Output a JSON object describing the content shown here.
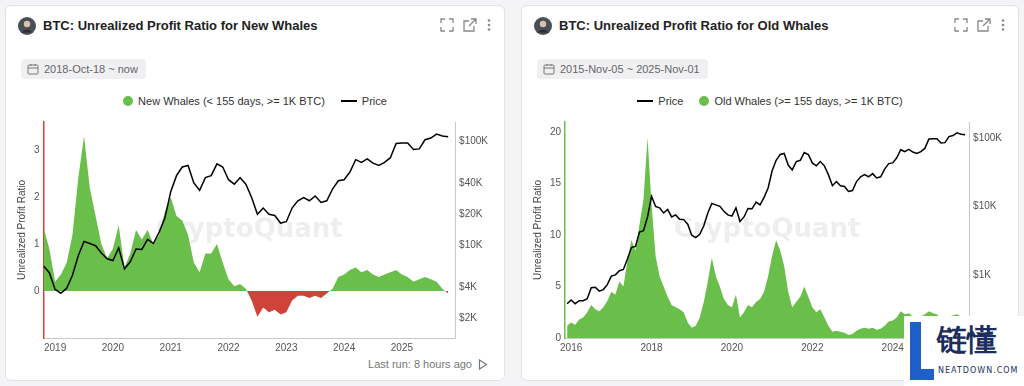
{
  "chart_data": [
    {
      "type": "area",
      "title": "BTC: Unrealized Profit Ratio for New Whales",
      "subtitle": "2018-Oct-18 ~ now",
      "watermark": "CryptoQuant",
      "footer": "Last run: 8 hours ago",
      "y_label": "Unrealized Profit Ratio",
      "legend": "top",
      "grid": false,
      "log": "y2",
      "x": [
        2018.8,
        2018.9,
        2019.0,
        2019.1,
        2019.2,
        2019.3,
        2019.4,
        2019.5,
        2019.6,
        2019.7,
        2019.8,
        2019.9,
        2020.0,
        2020.1,
        2020.2,
        2020.3,
        2020.4,
        2020.5,
        2020.6,
        2020.7,
        2020.8,
        2020.9,
        2021.0,
        2021.1,
        2021.2,
        2021.3,
        2021.4,
        2021.5,
        2021.6,
        2021.7,
        2021.8,
        2021.9,
        2022.0,
        2022.1,
        2022.2,
        2022.3,
        2022.4,
        2022.5,
        2022.6,
        2022.7,
        2022.8,
        2022.9,
        2023.0,
        2023.1,
        2023.2,
        2023.3,
        2023.4,
        2023.5,
        2023.6,
        2023.7,
        2023.8,
        2023.9,
        2024.0,
        2024.1,
        2024.2,
        2024.3,
        2024.4,
        2024.5,
        2024.6,
        2024.7,
        2024.8,
        2024.9,
        2025.0,
        2025.1,
        2025.2,
        2025.3,
        2025.4,
        2025.5,
        2025.6,
        2025.7,
        2025.8
      ],
      "xlim": [
        2018.8,
        2025.92
      ],
      "xticks": [
        2019,
        2020,
        2021,
        2022,
        2023,
        2024,
        2025
      ],
      "ylim": [
        -1,
        3.6
      ],
      "yticks": [
        0,
        1,
        2,
        3
      ],
      "y2lim": [
        1300,
        154000
      ],
      "y2ticks": [
        {
          "value": 2000,
          "label": "$2K"
        },
        {
          "value": 4000,
          "label": "$4K"
        },
        {
          "value": 10000,
          "label": "$10K"
        },
        {
          "value": 20000,
          "label": "$20K"
        },
        {
          "value": 40000,
          "label": "$40K"
        },
        {
          "value": 100000,
          "label": "$100K"
        }
      ],
      "series": [
        {
          "name": "New Whales (< 155 days, >= 1K BTC)",
          "type": "area",
          "marker": "circle",
          "values": [
            1.35,
            0.9,
            0.2,
            0.35,
            0.6,
            1.2,
            2.4,
            3.3,
            2.2,
            1.6,
            1.0,
            0.7,
            0.9,
            1.4,
            0.5,
            0.8,
            1.3,
            1.1,
            1.3,
            1.0,
            1.2,
            1.7,
            2.0,
            1.6,
            1.5,
            1.2,
            0.6,
            0.4,
            0.8,
            0.8,
            1.0,
            0.6,
            0.25,
            0.1,
            0.15,
            0.05,
            -0.2,
            -0.55,
            -0.35,
            -0.45,
            -0.4,
            -0.5,
            -0.45,
            -0.2,
            -0.1,
            -0.1,
            -0.15,
            -0.1,
            -0.15,
            -0.05,
            0.05,
            0.3,
            0.35,
            0.45,
            0.5,
            0.4,
            0.45,
            0.35,
            0.3,
            0.35,
            0.4,
            0.45,
            0.35,
            0.3,
            0.2,
            0.25,
            0.3,
            0.25,
            0.2,
            0.05,
            -0.05
          ],
          "colors": [
            "#6abf4b",
            "#6abf4b",
            "#6abf4b",
            "#6abf4b",
            "#6abf4b",
            "#6abf4b",
            "#6abf4b",
            "#6abf4b",
            "#6abf4b",
            "#6abf4b",
            "#6abf4b",
            "#6abf4b",
            "#6abf4b",
            "#6abf4b",
            "#6abf4b",
            "#6abf4b",
            "#6abf4b",
            "#6abf4b",
            "#6abf4b",
            "#6abf4b",
            "#6abf4b",
            "#6abf4b",
            "#6abf4b",
            "#6abf4b",
            "#6abf4b",
            "#6abf4b",
            "#6abf4b",
            "#6abf4b",
            "#6abf4b",
            "#6abf4b",
            "#6abf4b",
            "#6abf4b",
            "#6abf4b",
            "#6abf4b",
            "#6abf4b",
            "#6abf4b",
            "#cf4338",
            "#cf4338",
            "#cf4338",
            "#cf4338",
            "#cf4338",
            "#cf4338",
            "#cf4338",
            "#cf4338",
            "#cf4338",
            "#cf4338",
            "#cf4338",
            "#cf4338",
            "#cf4338",
            "#cf4338",
            "#6abf4b",
            "#6abf4b",
            "#6abf4b",
            "#6abf4b",
            "#6abf4b",
            "#6abf4b",
            "#6abf4b",
            "#6abf4b",
            "#6abf4b",
            "#6abf4b",
            "#6abf4b",
            "#6abf4b",
            "#6abf4b",
            "#6abf4b",
            "#6abf4b",
            "#6abf4b",
            "#6abf4b",
            "#6abf4b",
            "#6abf4b",
            "#6abf4b",
            "#cf4338"
          ]
        },
        {
          "name": "Price",
          "type": "line",
          "axis": "y2",
          "color": "#000000",
          "line_style": "solid",
          "values": [
            6400,
            5500,
            3800,
            3500,
            3900,
            5200,
            8000,
            11000,
            10500,
            10000,
            8500,
            7500,
            7200,
            9500,
            6000,
            7000,
            9300,
            9200,
            11500,
            10500,
            13500,
            18500,
            33000,
            47000,
            57000,
            59000,
            40000,
            34000,
            45000,
            47000,
            61000,
            57000,
            43000,
            39000,
            45000,
            39000,
            29000,
            20000,
            23000,
            20000,
            19500,
            16500,
            17000,
            23000,
            27000,
            29000,
            27000,
            30000,
            26000,
            27000,
            35000,
            42000,
            43000,
            51000,
            67000,
            63000,
            68000,
            62000,
            59000,
            63000,
            70000,
            96000,
            97000,
            97000,
            84000,
            85000,
            104000,
            108000,
            118000,
            113000,
            111000
          ]
        }
      ]
    },
    {
      "type": "area",
      "title": "BTC: Unrealized Profit Ratio for Old Whales",
      "subtitle": "2015-Nov-05 ~ 2025-Nov-01",
      "watermark": "CryptoQuant",
      "y_label": "Unrealized Profit Ratio",
      "legend": "top",
      "grid": false,
      "log": "y2",
      "x": [
        2015.9,
        2016.0,
        2016.1,
        2016.2,
        2016.3,
        2016.4,
        2016.5,
        2016.6,
        2016.7,
        2016.8,
        2016.9,
        2017.0,
        2017.1,
        2017.2,
        2017.3,
        2017.4,
        2017.5,
        2017.6,
        2017.7,
        2017.8,
        2017.9,
        2018.0,
        2018.1,
        2018.2,
        2018.3,
        2018.4,
        2018.5,
        2018.6,
        2018.7,
        2018.8,
        2018.9,
        2019.0,
        2019.1,
        2019.2,
        2019.3,
        2019.4,
        2019.5,
        2019.6,
        2019.7,
        2019.8,
        2019.9,
        2020.0,
        2020.1,
        2020.2,
        2020.3,
        2020.4,
        2020.5,
        2020.6,
        2020.7,
        2020.8,
        2020.9,
        2021.0,
        2021.1,
        2021.2,
        2021.3,
        2021.4,
        2021.5,
        2021.6,
        2021.7,
        2021.8,
        2021.9,
        2022.0,
        2022.1,
        2022.2,
        2022.3,
        2022.4,
        2022.5,
        2022.6,
        2022.7,
        2022.8,
        2022.9,
        2023.0,
        2023.1,
        2023.2,
        2023.3,
        2023.4,
        2023.5,
        2023.6,
        2023.7,
        2023.8,
        2023.9,
        2024.0,
        2024.1,
        2024.2,
        2024.3,
        2024.4,
        2024.5,
        2024.6,
        2024.7,
        2024.8,
        2024.9,
        2025.0,
        2025.1,
        2025.2,
        2025.3,
        2025.4,
        2025.5,
        2025.6,
        2025.7,
        2025.8
      ],
      "xlim": [
        2015.85,
        2025.9
      ],
      "xticks": [
        2016,
        2018,
        2020,
        2022,
        2024
      ],
      "ylim": [
        0,
        21
      ],
      "yticks": [
        0,
        5,
        10,
        15,
        20
      ],
      "y2lim": [
        120,
        170000
      ],
      "y2ticks": [
        {
          "value": 1000,
          "label": "$1K"
        },
        {
          "value": 10000,
          "label": "$10K"
        },
        {
          "value": 100000,
          "label": "$100K"
        }
      ],
      "series": [
        {
          "name": "Price",
          "type": "line",
          "axis": "y2",
          "color": "#000000",
          "line_style": "solid",
          "values": [
            380,
            430,
            380,
            420,
            420,
            450,
            650,
            660,
            580,
            610,
            720,
            960,
            1000,
            1150,
            1200,
            1700,
            2500,
            2600,
            4200,
            4400,
            7000,
            14000,
            10000,
            9500,
            8000,
            9000,
            7000,
            7500,
            6500,
            6400,
            5500,
            3800,
            3500,
            3900,
            5200,
            8000,
            11000,
            10500,
            10000,
            8500,
            7500,
            7200,
            9500,
            6000,
            7000,
            9300,
            9200,
            11500,
            10500,
            13500,
            18500,
            33000,
            47000,
            57000,
            59000,
            40000,
            34000,
            45000,
            47000,
            61000,
            57000,
            43000,
            39000,
            45000,
            39000,
            29000,
            20000,
            23000,
            20000,
            19500,
            16500,
            17000,
            23000,
            27000,
            29000,
            27000,
            30000,
            26000,
            27000,
            35000,
            42000,
            43000,
            51000,
            67000,
            63000,
            68000,
            62000,
            59000,
            63000,
            70000,
            96000,
            97000,
            97000,
            84000,
            85000,
            104000,
            108000,
            118000,
            113000,
            111000
          ]
        },
        {
          "name": "Old Whales (>= 155 days, >= 1K BTC)",
          "type": "area",
          "marker": "circle",
          "color": "#6abf4b",
          "values": [
            1.2,
            1.5,
            1.3,
            1.8,
            2.0,
            2.5,
            3.2,
            2.8,
            2.6,
            3.0,
            3.6,
            4.5,
            4.2,
            5.5,
            5.0,
            7.5,
            9.5,
            8.5,
            11.0,
            13.5,
            19.5,
            13.0,
            8.0,
            6.0,
            5.0,
            4.0,
            3.2,
            3.0,
            2.8,
            2.5,
            1.5,
            1.0,
            1.2,
            2.0,
            3.5,
            5.5,
            7.8,
            6.0,
            5.0,
            3.8,
            3.2,
            3.0,
            4.2,
            2.0,
            2.5,
            3.2,
            3.0,
            3.5,
            3.8,
            4.5,
            6.0,
            8.0,
            9.5,
            8.5,
            7.0,
            4.5,
            3.0,
            3.5,
            4.0,
            5.0,
            4.0,
            3.0,
            2.5,
            2.8,
            2.0,
            1.2,
            0.6,
            0.7,
            0.6,
            0.5,
            0.3,
            0.4,
            0.7,
            0.9,
            1.0,
            0.9,
            1.0,
            0.8,
            0.9,
            1.2,
            1.6,
            1.7,
            2.0,
            2.6,
            2.3,
            2.4,
            2.1,
            2.0,
            2.1,
            2.3,
            2.6,
            2.4,
            2.3,
            1.9,
            1.9,
            2.1,
            2.2,
            2.3,
            2.1,
            2.0
          ]
        }
      ]
    }
  ],
  "watermark": {
    "text": "链懂",
    "subtext": "NEATDOWN.COM"
  }
}
